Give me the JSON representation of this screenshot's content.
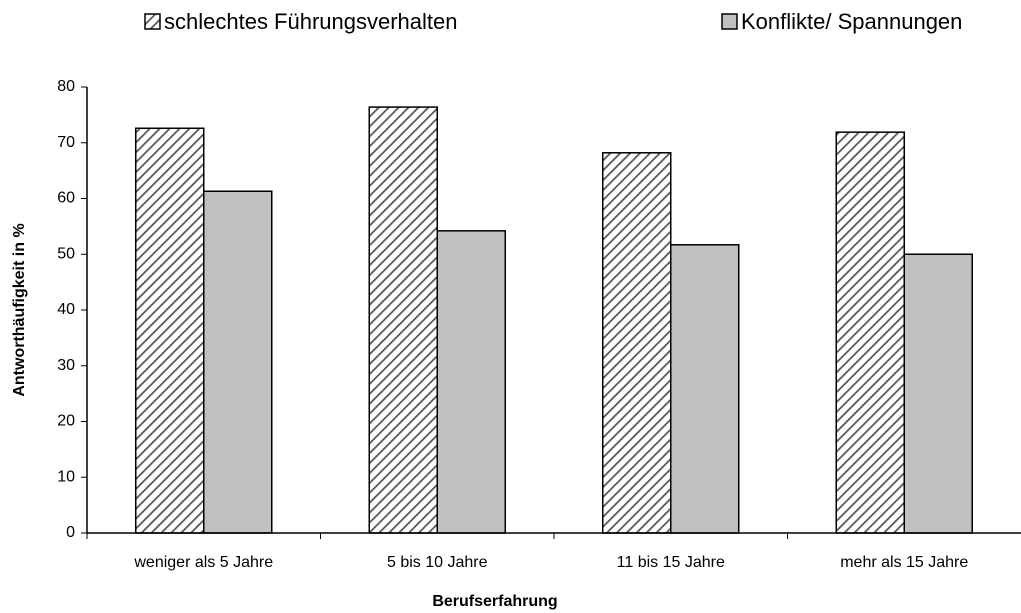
{
  "chart_data": {
    "type": "bar",
    "categories": [
      "weniger als 5 Jahre",
      "5 bis 10 Jahre",
      "11 bis 15 Jahre",
      "mehr als 15 Jahre"
    ],
    "series": [
      {
        "name": "schlechtes Führungsverhalten",
        "color": "#ffffff",
        "pattern": "diagonal-hatch",
        "values": [
          72.6,
          76.4,
          68.2,
          71.9
        ]
      },
      {
        "name": "Konflikte/ Spannungen",
        "color": "#c0c0c0",
        "values": [
          61.3,
          54.2,
          51.7,
          50.0
        ]
      }
    ],
    "xlabel": "Berufserfahrung",
    "ylabel": "Antworthäufigkeit in %",
    "ylim": [
      0,
      80
    ],
    "yticks": [
      0,
      10,
      20,
      30,
      40,
      50,
      60,
      70,
      80
    ],
    "grid": false,
    "legend": "top"
  }
}
